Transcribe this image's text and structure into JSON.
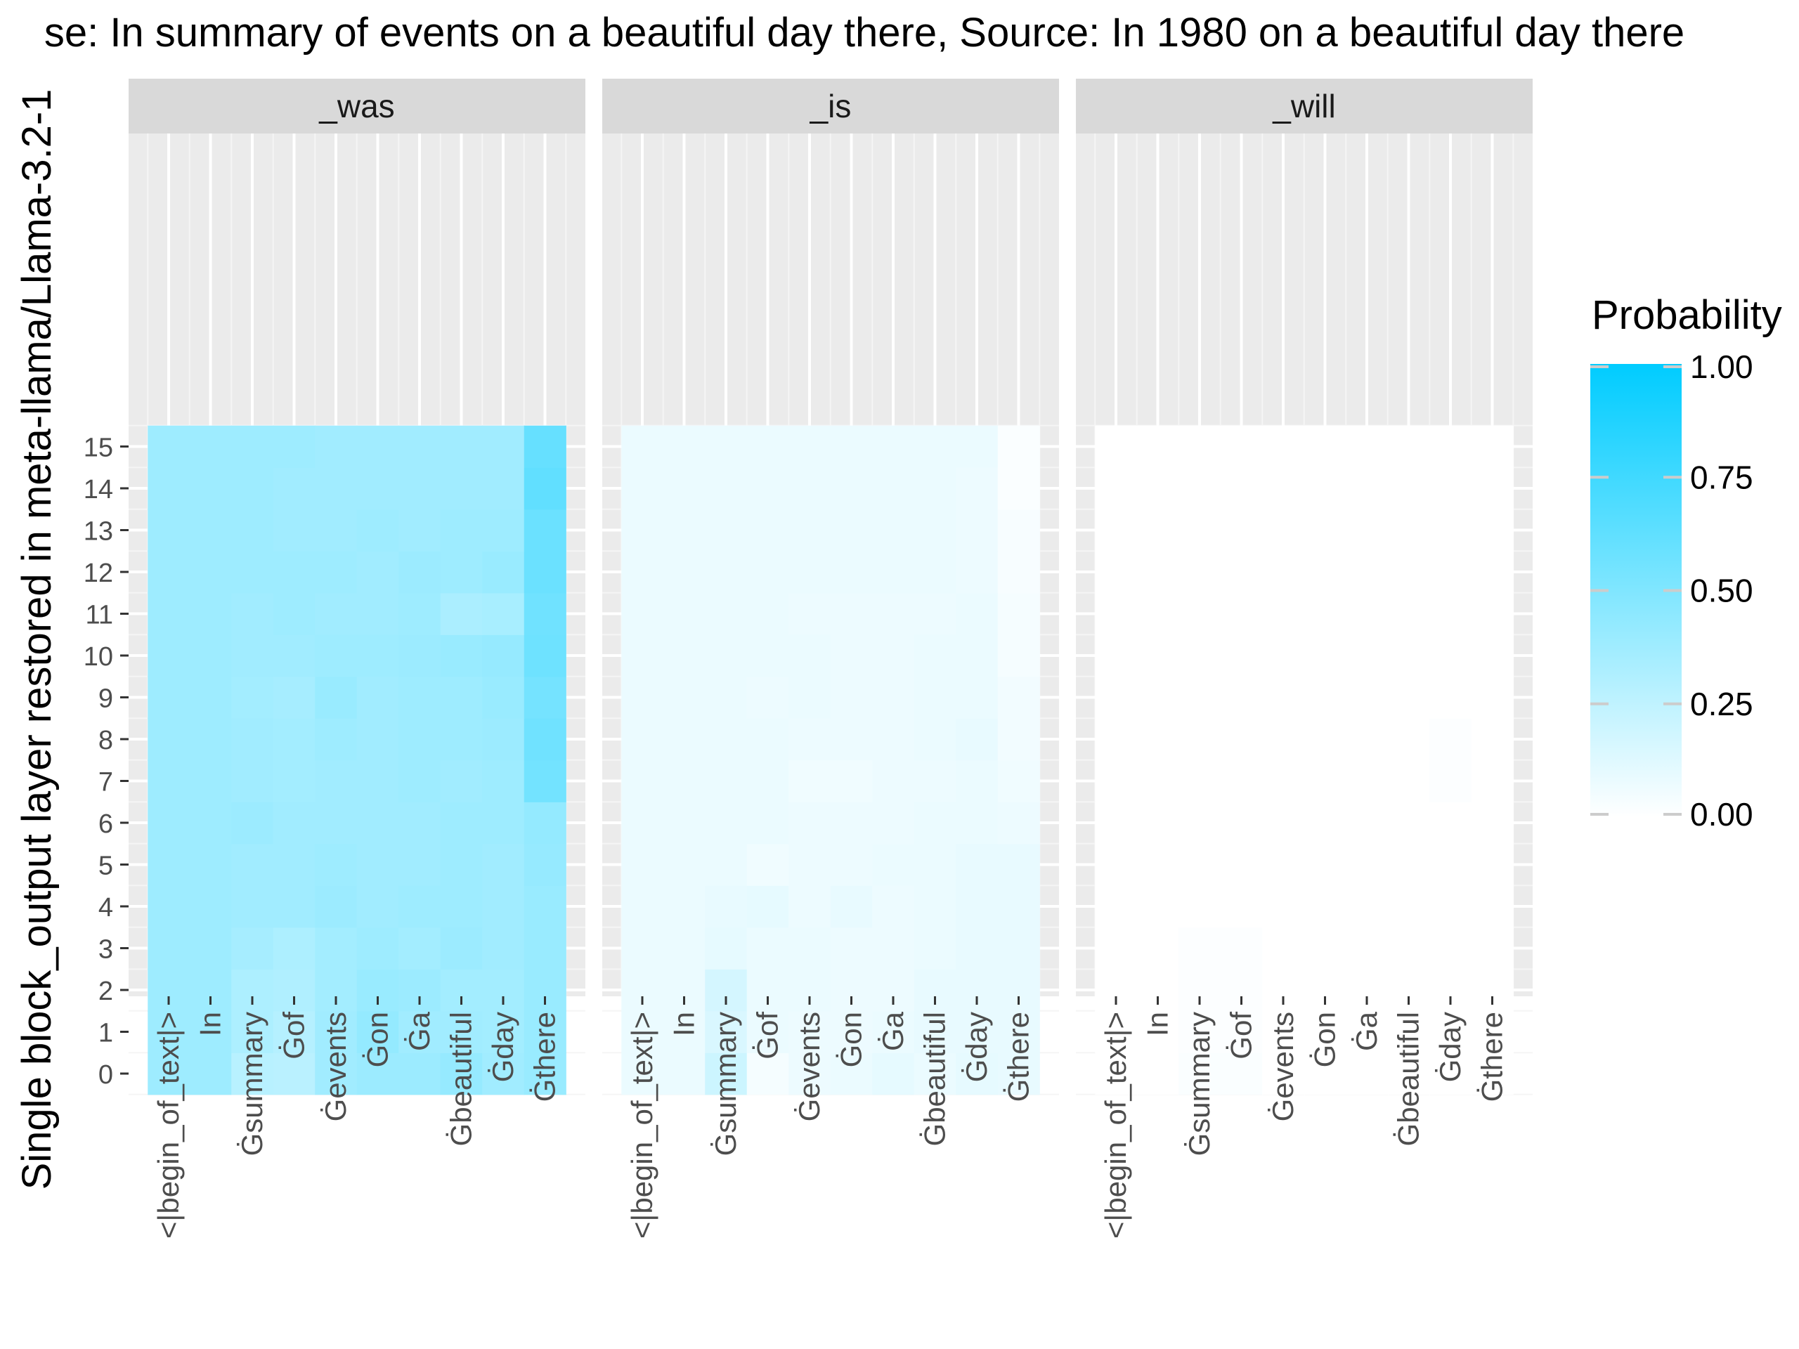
{
  "chart_data": {
    "type": "heatmap",
    "title": "se: In summary of events on a beautiful day there, Source: In 1980 on a beautiful day there",
    "ylabel": "Single block_output layer restored in meta-llama/Llama-3.2-1",
    "xlabel": "",
    "legend": {
      "title": "Probability",
      "position": "right",
      "breaks": [
        "1.00",
        "0.75",
        "0.50",
        "0.25",
        "0.00"
      ],
      "low_color": "#ffffff",
      "high_color": "#00ccff",
      "limits": [
        0,
        1
      ]
    },
    "x_categories": [
      "<|begin_of_text|>",
      "In",
      "Ġsummary",
      "Ġof",
      "Ġevents",
      "Ġon",
      "Ġa",
      "Ġbeautiful",
      "Ġday",
      "Ġthere"
    ],
    "y_categories": [
      "0",
      "1",
      "2",
      "3",
      "4",
      "5",
      "6",
      "7",
      "8",
      "9",
      "10",
      "11",
      "12",
      "13",
      "14",
      "15"
    ],
    "grid": true,
    "facets": [
      {
        "label": "_was",
        "values": [
          [
            0.38,
            0.38,
            0.28,
            0.27,
            0.37,
            0.39,
            0.39,
            0.41,
            0.37,
            0.4
          ],
          [
            0.38,
            0.38,
            0.32,
            0.29,
            0.37,
            0.42,
            0.37,
            0.37,
            0.36,
            0.4
          ],
          [
            0.38,
            0.38,
            0.32,
            0.31,
            0.36,
            0.4,
            0.39,
            0.36,
            0.36,
            0.4
          ],
          [
            0.38,
            0.38,
            0.35,
            0.32,
            0.36,
            0.38,
            0.36,
            0.39,
            0.37,
            0.4
          ],
          [
            0.38,
            0.38,
            0.37,
            0.37,
            0.39,
            0.37,
            0.38,
            0.38,
            0.37,
            0.4
          ],
          [
            0.38,
            0.38,
            0.37,
            0.37,
            0.38,
            0.37,
            0.37,
            0.38,
            0.37,
            0.41
          ],
          [
            0.38,
            0.38,
            0.39,
            0.37,
            0.37,
            0.37,
            0.37,
            0.38,
            0.38,
            0.42
          ],
          [
            0.38,
            0.38,
            0.37,
            0.36,
            0.37,
            0.37,
            0.38,
            0.37,
            0.38,
            0.55
          ],
          [
            0.38,
            0.38,
            0.37,
            0.36,
            0.38,
            0.37,
            0.38,
            0.38,
            0.39,
            0.56
          ],
          [
            0.38,
            0.38,
            0.36,
            0.35,
            0.4,
            0.37,
            0.38,
            0.38,
            0.4,
            0.54
          ],
          [
            0.38,
            0.38,
            0.37,
            0.37,
            0.38,
            0.38,
            0.39,
            0.4,
            0.41,
            0.57
          ],
          [
            0.38,
            0.38,
            0.37,
            0.38,
            0.37,
            0.37,
            0.38,
            0.33,
            0.34,
            0.56
          ],
          [
            0.38,
            0.38,
            0.38,
            0.38,
            0.38,
            0.37,
            0.39,
            0.38,
            0.4,
            0.58
          ],
          [
            0.38,
            0.38,
            0.38,
            0.37,
            0.37,
            0.38,
            0.37,
            0.38,
            0.38,
            0.58
          ],
          [
            0.38,
            0.38,
            0.38,
            0.37,
            0.37,
            0.37,
            0.37,
            0.37,
            0.37,
            0.62
          ],
          [
            0.38,
            0.38,
            0.38,
            0.38,
            0.37,
            0.37,
            0.37,
            0.37,
            0.37,
            0.6
          ]
        ]
      },
      {
        "label": "_is",
        "values": [
          [
            0.08,
            0.08,
            0.2,
            0.04,
            0.07,
            0.08,
            0.1,
            0.08,
            0.1,
            0.09
          ],
          [
            0.08,
            0.08,
            0.15,
            0.08,
            0.07,
            0.07,
            0.08,
            0.09,
            0.09,
            0.09
          ],
          [
            0.08,
            0.08,
            0.17,
            0.08,
            0.08,
            0.07,
            0.07,
            0.09,
            0.09,
            0.09
          ],
          [
            0.08,
            0.08,
            0.1,
            0.08,
            0.08,
            0.07,
            0.07,
            0.08,
            0.09,
            0.09
          ],
          [
            0.08,
            0.08,
            0.09,
            0.1,
            0.07,
            0.09,
            0.07,
            0.08,
            0.09,
            0.09
          ],
          [
            0.08,
            0.08,
            0.08,
            0.06,
            0.07,
            0.07,
            0.08,
            0.08,
            0.09,
            0.09
          ],
          [
            0.08,
            0.08,
            0.08,
            0.08,
            0.07,
            0.07,
            0.07,
            0.08,
            0.08,
            0.07
          ],
          [
            0.08,
            0.08,
            0.08,
            0.08,
            0.06,
            0.06,
            0.07,
            0.07,
            0.08,
            0.06
          ],
          [
            0.08,
            0.08,
            0.08,
            0.08,
            0.07,
            0.07,
            0.07,
            0.08,
            0.09,
            0.05
          ],
          [
            0.08,
            0.08,
            0.08,
            0.07,
            0.08,
            0.07,
            0.07,
            0.08,
            0.08,
            0.05
          ],
          [
            0.08,
            0.08,
            0.08,
            0.08,
            0.08,
            0.07,
            0.07,
            0.08,
            0.08,
            0.04
          ],
          [
            0.08,
            0.08,
            0.08,
            0.08,
            0.07,
            0.07,
            0.07,
            0.07,
            0.08,
            0.04
          ],
          [
            0.08,
            0.08,
            0.08,
            0.08,
            0.08,
            0.08,
            0.08,
            0.08,
            0.07,
            0.03
          ],
          [
            0.08,
            0.08,
            0.08,
            0.08,
            0.08,
            0.08,
            0.08,
            0.08,
            0.07,
            0.03
          ],
          [
            0.08,
            0.08,
            0.08,
            0.08,
            0.08,
            0.08,
            0.08,
            0.08,
            0.07,
            0.02
          ],
          [
            0.08,
            0.08,
            0.08,
            0.08,
            0.08,
            0.08,
            0.08,
            0.08,
            0.08,
            0.02
          ]
        ]
      },
      {
        "label": "_will",
        "values": [
          [
            0.0,
            0.0,
            0.02,
            0.02,
            0.0,
            0.0,
            0.0,
            0.0,
            0.0,
            0.0
          ],
          [
            0.0,
            0.0,
            0.01,
            0.01,
            0.0,
            0.0,
            0.0,
            0.0,
            0.0,
            0.0
          ],
          [
            0.0,
            0.0,
            0.01,
            0.01,
            0.0,
            0.0,
            0.0,
            0.0,
            0.0,
            0.0
          ],
          [
            0.0,
            0.0,
            0.01,
            0.01,
            0.0,
            0.0,
            0.0,
            0.0,
            0.0,
            0.0
          ],
          [
            0.0,
            0.0,
            0.0,
            0.0,
            0.0,
            0.0,
            0.0,
            0.0,
            0.0,
            0.0
          ],
          [
            0.0,
            0.0,
            0.0,
            0.0,
            0.0,
            0.0,
            0.0,
            0.0,
            0.0,
            0.0
          ],
          [
            0.0,
            0.0,
            0.0,
            0.0,
            0.0,
            0.0,
            0.0,
            0.0,
            0.0,
            0.0
          ],
          [
            0.0,
            0.0,
            0.0,
            0.0,
            0.0,
            0.0,
            0.0,
            0.0,
            0.01,
            0.0
          ],
          [
            0.0,
            0.0,
            0.0,
            0.0,
            0.0,
            0.0,
            0.0,
            0.0,
            0.01,
            0.0
          ],
          [
            0.0,
            0.0,
            0.0,
            0.0,
            0.0,
            0.0,
            0.0,
            0.0,
            0.0,
            0.0
          ],
          [
            0.0,
            0.0,
            0.0,
            0.0,
            0.0,
            0.0,
            0.0,
            0.0,
            0.0,
            0.0
          ],
          [
            0.0,
            0.0,
            0.0,
            0.0,
            0.0,
            0.0,
            0.0,
            0.0,
            0.0,
            0.0
          ],
          [
            0.0,
            0.0,
            0.0,
            0.0,
            0.0,
            0.0,
            0.0,
            0.0,
            0.0,
            0.0
          ],
          [
            0.0,
            0.0,
            0.0,
            0.0,
            0.0,
            0.0,
            0.0,
            0.0,
            0.0,
            0.0
          ],
          [
            0.0,
            0.0,
            0.0,
            0.0,
            0.0,
            0.0,
            0.0,
            0.0,
            0.0,
            0.0
          ],
          [
            0.0,
            0.0,
            0.0,
            0.0,
            0.0,
            0.0,
            0.0,
            0.0,
            0.0,
            0.0
          ]
        ]
      }
    ]
  }
}
